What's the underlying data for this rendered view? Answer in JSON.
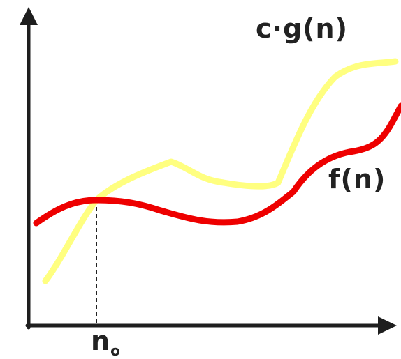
{
  "labels": {
    "upper_curve": "c·g(n)",
    "lower_curve": "f(n)",
    "threshold_main": "n",
    "threshold_sub": "o"
  },
  "colors": {
    "upper_curve": "#ffff80",
    "lower_curve": "#ee0000",
    "axes": "#1e1e1e",
    "threshold_line": "#222222",
    "text": "#222222"
  }
}
